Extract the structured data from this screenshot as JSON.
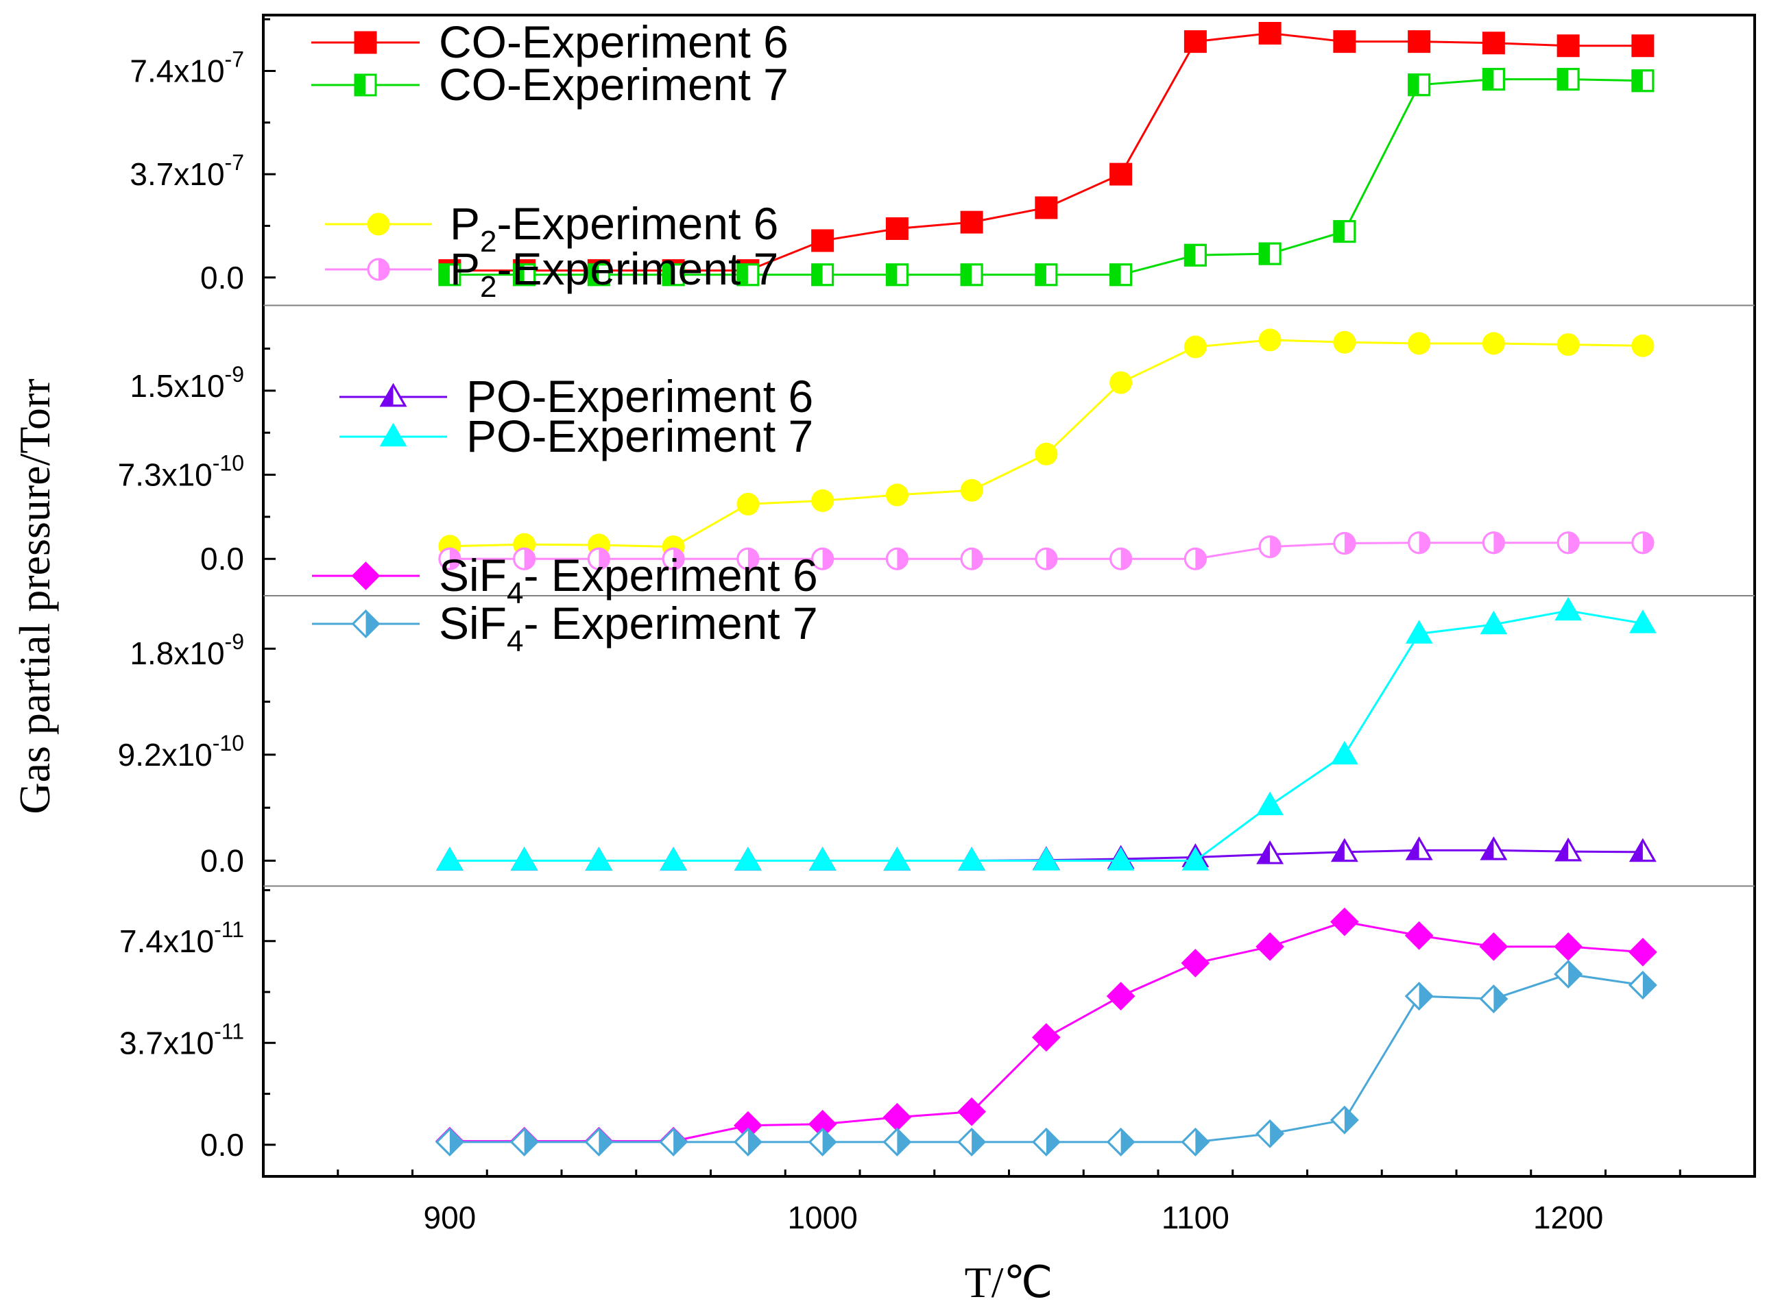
{
  "chart_data": {
    "type": "line",
    "xlabel": "T/℃",
    "ylabel": "Gas partial pressure/Torr",
    "xlim": [
      850,
      1250
    ],
    "x_ticks": [
      900,
      1000,
      1100,
      1200
    ],
    "x_tick_labels": [
      "900",
      "1000",
      "1100",
      "1200"
    ],
    "x": [
      900,
      920,
      940,
      960,
      980,
      1000,
      1020,
      1040,
      1060,
      1080,
      1100,
      1120,
      1140,
      1160,
      1180,
      1200,
      1220
    ],
    "panels": [
      {
        "name": "CO",
        "ylim": [
          -1e-07,
          9.4e-07
        ],
        "y_ticks": [
          0,
          3.7e-07,
          7.4e-07
        ],
        "y_tick_labels": [
          {
            "base": "0.0",
            "exp": ""
          },
          {
            "base": "3.7x10",
            "exp": "-7"
          },
          {
            "base": "7.4x10",
            "exp": "-7"
          }
        ],
        "series": [
          {
            "name": "CO-Experiment 6",
            "legend_main": "CO-Experiment 6",
            "legend_sub": "",
            "legend_rest": "",
            "color": "#ff0000",
            "marker": "square",
            "fill": "full",
            "values": [
              2.5e-08,
              2.5e-08,
              2.5e-08,
              2.5e-08,
              2.5e-08,
              1.32e-07,
              1.75e-07,
              1.98e-07,
              2.5e-07,
              3.7e-07,
              8.45e-07,
              8.75e-07,
              8.45e-07,
              8.45e-07,
              8.4e-07,
              8.3e-07,
              8.3e-07
            ]
          },
          {
            "name": "CO-Experiment 7",
            "legend_main": "CO-Experiment 7",
            "legend_sub": "",
            "legend_rest": "",
            "color": "#00dd00",
            "marker": "square",
            "fill": "left",
            "values": [
              1e-08,
              1e-08,
              1e-08,
              1e-08,
              1e-08,
              1e-08,
              1e-08,
              1e-08,
              1e-08,
              1e-08,
              8e-08,
              8.5e-08,
              1.65e-07,
              6.9e-07,
              7.1e-07,
              7.1e-07,
              7.05e-07
            ]
          }
        ]
      },
      {
        "name": "P2",
        "ylim": [
          -3.2e-10,
          2.2e-09
        ],
        "y_ticks": [
          0,
          7.3e-10,
          1.5e-09
        ],
        "y_tick_labels": [
          {
            "base": "0.0",
            "exp": ""
          },
          {
            "base": "7.3x10",
            "exp": "-10"
          },
          {
            "base": "1.5x10",
            "exp": "-9"
          }
        ],
        "series": [
          {
            "name": "P2-Experiment 6",
            "legend_main": "P",
            "legend_sub": "2",
            "legend_rest": "-Experiment 6",
            "color": "#ffff00",
            "marker": "circle",
            "fill": "full",
            "values": [
              1.1e-10,
              1.25e-10,
              1.2e-10,
              1.05e-10,
              4.75e-10,
              5.05e-10,
              5.55e-10,
              5.95e-10,
              9.1e-10,
              1.53e-09,
              1.84e-09,
              1.9e-09,
              1.88e-09,
              1.87e-09,
              1.87e-09,
              1.86e-09,
              1.85e-09
            ]
          },
          {
            "name": "P2-Experiment 7",
            "legend_main": "P",
            "legend_sub": "2",
            "legend_rest": "-Experiment 7",
            "color": "#ff88ff",
            "marker": "circle",
            "fill": "right",
            "values": [
              0,
              0,
              0,
              0,
              0,
              0,
              0,
              0,
              0,
              0,
              0,
              1.05e-10,
              1.35e-10,
              1.4e-10,
              1.4e-10,
              1.4e-10,
              1.4e-10
            ]
          }
        ]
      },
      {
        "name": "PO",
        "ylim": [
          -2.2e-10,
          2.3e-09
        ],
        "y_ticks": [
          0,
          9.2e-10,
          1.8e-09
        ],
        "y_tick_labels": [
          {
            "base": "0.0",
            "exp": ""
          },
          {
            "base": "9.2x10",
            "exp": "-10"
          },
          {
            "base": "1.8x10",
            "exp": "-9"
          }
        ],
        "series": [
          {
            "name": "PO-Experiment 6",
            "legend_main": "PO-Experiment 6",
            "legend_sub": "",
            "legend_rest": "",
            "color": "#7700ee",
            "marker": "triangle",
            "fill": "left",
            "values": [
              0,
              0,
              0,
              0,
              0,
              0,
              0,
              0,
              5e-12,
              1.5e-11,
              3e-11,
              5.5e-11,
              7.5e-11,
              9e-11,
              9e-11,
              8e-11,
              7.5e-11
            ]
          },
          {
            "name": "PO-Experiment 7",
            "legend_main": "PO-Experiment 7",
            "legend_sub": "",
            "legend_rest": "",
            "color": "#00ffff",
            "marker": "triangle",
            "fill": "full",
            "values": [
              0,
              0,
              0,
              0,
              0,
              0,
              0,
              0,
              0,
              0,
              0,
              4.8e-10,
              9.2e-10,
              1.97e-09,
              2.05e-09,
              2.17e-09,
              2.06e-09
            ]
          }
        ]
      },
      {
        "name": "SiF4",
        "ylim": [
          -1.15e-11,
          9.4e-11
        ],
        "y_ticks": [
          0,
          3.7e-11,
          7.4e-11
        ],
        "y_tick_labels": [
          {
            "base": "0.0",
            "exp": ""
          },
          {
            "base": "3.7x10",
            "exp": "-11"
          },
          {
            "base": "7.4x10",
            "exp": "-11"
          }
        ],
        "series": [
          {
            "name": "SiF4- Experiment 6",
            "legend_main": "SiF",
            "legend_sub": "4",
            "legend_rest": "- Experiment 6",
            "color": "#ff00ff",
            "marker": "diamond",
            "fill": "full",
            "values": [
              1.3e-12,
              1.3e-12,
              1.3e-12,
              1.3e-12,
              7e-12,
              7.5e-12,
              1e-11,
              1.2e-11,
              3.9e-11,
              5.4e-11,
              6.6e-11,
              7.2e-11,
              8.1e-11,
              7.6e-11,
              7.2e-11,
              7.2e-11,
              7e-11
            ]
          },
          {
            "name": "SiF4- Experiment 7",
            "legend_main": "SiF",
            "legend_sub": "4",
            "legend_rest": "- Experiment 7",
            "color": "#4aa8d8",
            "marker": "diamond",
            "fill": "right",
            "values": [
              1e-12,
              1e-12,
              1e-12,
              1e-12,
              1e-12,
              1e-12,
              1e-12,
              1e-12,
              1e-12,
              1e-12,
              1e-12,
              4e-12,
              9e-12,
              5.4e-11,
              5.3e-11,
              6.2e-11,
              5.8e-11
            ]
          }
        ]
      }
    ]
  }
}
